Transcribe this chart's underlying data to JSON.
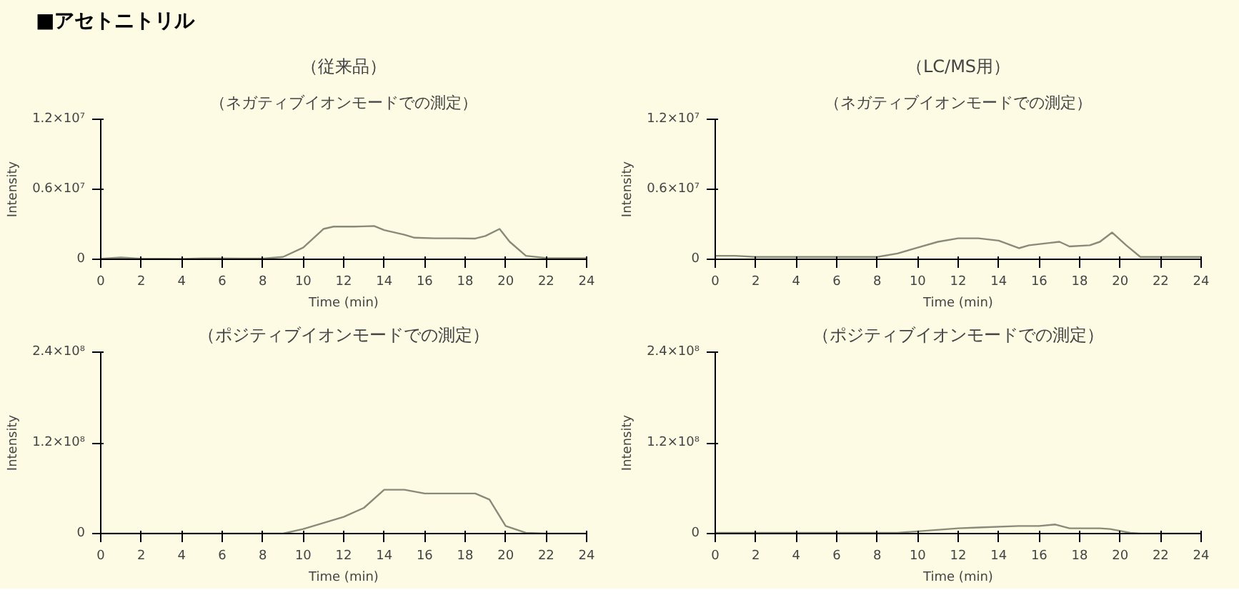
{
  "chart_data": [
    {
      "type": "line",
      "title": "（従来品）",
      "subtitle": "（ネガティブイオンモードでの測定）",
      "annotations": [
        "■アセトニトリル"
      ],
      "xlabel": "Time (min)",
      "ylabel": "Intensity",
      "xlim": [
        0,
        24
      ],
      "xticks": [
        0,
        2,
        4,
        6,
        8,
        10,
        12,
        14,
        16,
        18,
        20,
        22,
        24
      ],
      "ylim": [
        0,
        12000000
      ],
      "yticks": [
        0,
        {
          "value": 6000000,
          "label": "0.6×10⁷"
        },
        {
          "value": 12000000,
          "label": "1.2×10⁷"
        }
      ],
      "grid": false,
      "series": [
        {
          "color": "#8a8a7a",
          "x": [
            0,
            1,
            2,
            3,
            4,
            5,
            6,
            7,
            8,
            9,
            10,
            11,
            11.5,
            12.5,
            13.5,
            14,
            15,
            15.5,
            16.5,
            17.5,
            18.5,
            19,
            19.7,
            20.2,
            21,
            22,
            23,
            24
          ],
          "values": [
            50000,
            150000,
            50000,
            50000,
            30000,
            80000,
            80000,
            60000,
            60000,
            200000,
            1000000,
            2600000,
            2800000,
            2800000,
            2850000,
            2500000,
            2100000,
            1850000,
            1800000,
            1800000,
            1780000,
            2000000,
            2600000,
            1500000,
            300000,
            100000,
            100000,
            100000
          ]
        }
      ]
    },
    {
      "type": "line",
      "title": "（LC/MS用）",
      "subtitle": "（ネガティブイオンモードでの測定）",
      "xlabel": "Time (min)",
      "ylabel": "Intensity",
      "xlim": [
        0,
        24
      ],
      "xticks": [
        0,
        2,
        4,
        6,
        8,
        10,
        12,
        14,
        16,
        18,
        20,
        22,
        24
      ],
      "ylim": [
        0,
        12000000
      ],
      "yticks": [
        0,
        {
          "value": 6000000,
          "label": "0.6×10⁷"
        },
        {
          "value": 12000000,
          "label": "1.2×10⁷"
        }
      ],
      "grid": false,
      "series": [
        {
          "color": "#8a8a7a",
          "x": [
            0,
            1,
            2,
            3,
            4,
            5,
            6,
            7,
            8,
            9,
            10,
            11,
            12,
            13,
            14,
            15,
            15.5,
            16.5,
            17,
            17.5,
            18.5,
            19,
            19.6,
            20.3,
            21,
            22,
            23,
            24
          ],
          "values": [
            300000,
            300000,
            200000,
            200000,
            200000,
            200000,
            200000,
            200000,
            200000,
            500000,
            1000000,
            1500000,
            1800000,
            1800000,
            1600000,
            950000,
            1200000,
            1400000,
            1500000,
            1100000,
            1200000,
            1500000,
            2300000,
            1200000,
            200000,
            200000,
            200000,
            200000
          ]
        }
      ]
    },
    {
      "type": "line",
      "title": "（ポジティブイオンモードでの測定）",
      "xlabel": "Time (min)",
      "ylabel": "Intensity",
      "xlim": [
        0,
        24
      ],
      "xticks": [
        0,
        2,
        4,
        6,
        8,
        10,
        12,
        14,
        16,
        18,
        20,
        22,
        24
      ],
      "ylim": [
        0,
        240000000
      ],
      "yticks": [
        0,
        {
          "value": 120000000,
          "label": "1.2×10⁸"
        },
        {
          "value": 240000000,
          "label": "2.4×10⁸"
        }
      ],
      "grid": false,
      "series": [
        {
          "color": "#8a8a7a",
          "x": [
            0,
            2,
            4,
            6,
            8,
            9,
            10,
            12,
            13,
            14,
            15,
            16,
            17,
            18.5,
            19.2,
            20,
            21,
            22,
            23,
            24
          ],
          "values": [
            0,
            0,
            0,
            0,
            0,
            0,
            6000000,
            22000000,
            34000000,
            58000000,
            58000000,
            53000000,
            53000000,
            53000000,
            45000000,
            10000000,
            1000000,
            0,
            0,
            0
          ]
        }
      ]
    },
    {
      "type": "line",
      "title": "（ポジティブイオンモードでの測定）",
      "xlabel": "Time (min)",
      "ylabel": "Intensity",
      "xlim": [
        0,
        24
      ],
      "xticks": [
        0,
        2,
        4,
        6,
        8,
        10,
        12,
        14,
        16,
        18,
        20,
        22,
        24
      ],
      "ylim": [
        0,
        240000000
      ],
      "yticks": [
        0,
        {
          "value": 120000000,
          "label": "1.2×10⁸"
        },
        {
          "value": 240000000,
          "label": "2.4×10⁸"
        }
      ],
      "grid": false,
      "series": [
        {
          "color": "#8a8a7a",
          "x": [
            0,
            2,
            4,
            6,
            8,
            9,
            10,
            12,
            13,
            15,
            16,
            16.8,
            17.5,
            19,
            19.5,
            20.5,
            21,
            22,
            23,
            24
          ],
          "values": [
            1000000,
            1000000,
            1000000,
            1000000,
            1000000,
            1000000,
            3000000,
            7000000,
            8000000,
            10000000,
            10000000,
            12000000,
            7000000,
            7000000,
            6000000,
            1000000,
            0,
            0,
            0,
            0
          ]
        }
      ]
    }
  ]
}
